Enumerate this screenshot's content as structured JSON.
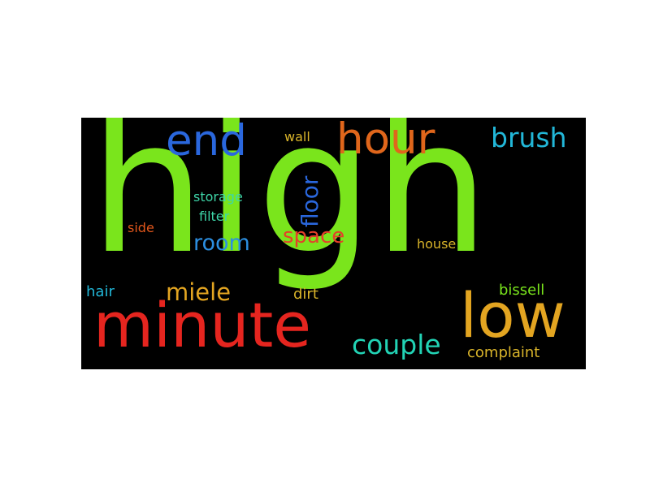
{
  "words": [
    {
      "id": "high",
      "text": "high",
      "color": "#7ae51c"
    },
    {
      "id": "minute",
      "text": "minute",
      "color": "#e5251f"
    },
    {
      "id": "low",
      "text": "low",
      "color": "#e3a521"
    },
    {
      "id": "hour",
      "text": "hour",
      "color": "#e0661b"
    },
    {
      "id": "end",
      "text": "end",
      "color": "#2a67dd"
    },
    {
      "id": "brush",
      "text": "brush",
      "color": "#22b7d8"
    },
    {
      "id": "couple",
      "text": "couple",
      "color": "#22d3b5"
    },
    {
      "id": "floor",
      "text": "floor",
      "color": "#2a67dd"
    },
    {
      "id": "miele",
      "text": "miele",
      "color": "#e3a521"
    },
    {
      "id": "space",
      "text": "space",
      "color": "#e5402a"
    },
    {
      "id": "room",
      "text": "room",
      "color": "#2c8fe0"
    },
    {
      "id": "storage",
      "text": "storage",
      "color": "#3ed6a8"
    },
    {
      "id": "filter",
      "text": "filter",
      "color": "#3ed6a8"
    },
    {
      "id": "side",
      "text": "side",
      "color": "#e0561b"
    },
    {
      "id": "wall",
      "text": "wall",
      "color": "#d9b42a"
    },
    {
      "id": "house",
      "text": "house",
      "color": "#d9b42a"
    },
    {
      "id": "bissell",
      "text": "bissell",
      "color": "#7ae51c"
    },
    {
      "id": "hair",
      "text": "hair",
      "color": "#22b7d8"
    },
    {
      "id": "dirt",
      "text": "dirt",
      "color": "#d9b42a"
    },
    {
      "id": "complaint",
      "text": "complaint",
      "color": "#d9b42a"
    }
  ]
}
